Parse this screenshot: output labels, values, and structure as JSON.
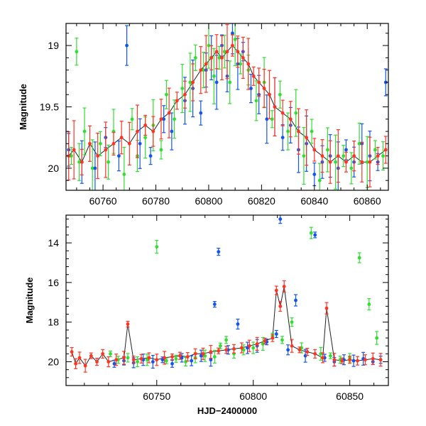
{
  "chart_data": [
    {
      "type": "scatter",
      "panel": "top",
      "xlabel": "",
      "ylabel": "Magnitude",
      "xlim": [
        60746,
        60868
      ],
      "ylim": [
        20.18,
        18.82
      ],
      "y_inverted": true,
      "xticks": [
        60760,
        60780,
        60800,
        60820,
        60840,
        60860
      ],
      "xtick_labels": [
        "60760",
        "60780",
        "60800",
        "60820",
        "60840",
        "60860"
      ],
      "yticks": [
        19,
        19.5,
        20
      ],
      "ytick_labels": [
        "19",
        "19.5",
        "20"
      ],
      "grid": false,
      "errorbars": true,
      "series": [
        {
          "color": "#33dd33",
          "x": [
            60748,
            60750,
            60751,
            60753,
            60756,
            60759,
            60762,
            60764,
            60768,
            60771,
            60773,
            60776,
            60779,
            60782,
            60784,
            60787,
            60790,
            60793,
            60795,
            60798,
            60800,
            60802,
            60804,
            60806,
            60808,
            60810,
            60812,
            60815,
            60818,
            60821,
            60824,
            60827,
            60830,
            60833,
            60836,
            60839,
            60842,
            60845,
            60848,
            60851,
            60854,
            60857,
            60860,
            60863,
            60866
          ],
          "y": [
            19.9,
            19.05,
            19.95,
            19.7,
            20.0,
            19.8,
            19.95,
            19.7,
            20.05,
            19.6,
            19.9,
            19.75,
            19.65,
            19.85,
            19.4,
            19.6,
            19.35,
            19.3,
            19.1,
            19.2,
            19.0,
            19.25,
            19.1,
            19.05,
            19.3,
            18.95,
            19.15,
            19.2,
            19.45,
            19.3,
            19.6,
            19.4,
            19.7,
            19.55,
            19.9,
            19.7,
            20.1,
            19.85,
            19.95,
            19.9,
            20.0,
            19.8,
            19.95,
            19.85,
            19.9
          ]
        },
        {
          "color": "#1155ee",
          "x": [
            60747,
            60752,
            60757,
            60761,
            60766,
            60769,
            60774,
            60778,
            60783,
            60786,
            60791,
            60794,
            60797,
            60799,
            60801,
            60803,
            60805,
            60807,
            60809,
            60811,
            60813,
            60816,
            60819,
            60822,
            60825,
            60828,
            60831,
            60834,
            60837,
            60840,
            60843,
            60846,
            60849,
            60852,
            60855,
            60858,
            60861,
            60864,
            60867
          ],
          "y": [
            19.85,
            19.95,
            20.0,
            19.75,
            19.9,
            19.0,
            19.8,
            19.9,
            19.6,
            19.7,
            19.45,
            19.35,
            19.55,
            19.2,
            19.1,
            19.3,
            19.0,
            19.25,
            18.9,
            19.15,
            19.05,
            19.35,
            19.4,
            19.6,
            19.5,
            19.75,
            19.65,
            19.85,
            19.8,
            20.05,
            19.95,
            19.9,
            20.0,
            19.85,
            19.95,
            19.8,
            19.9,
            19.95,
            19.3
          ]
        },
        {
          "color": "#ff3322",
          "x": [
            60747,
            60749,
            60752,
            60755,
            60758,
            60761,
            60764,
            60767,
            60770,
            60773,
            60776,
            60779,
            60782,
            60785,
            60788,
            60791,
            60794,
            60797,
            60799,
            60801,
            60803,
            60805,
            60807,
            60809,
            60811,
            60813,
            60815,
            60817,
            60819,
            60821,
            60823,
            60825,
            60828,
            60831,
            60834,
            60837,
            60840,
            60843,
            60846,
            60849,
            60852,
            60855,
            60858,
            60861,
            60864,
            60867
          ],
          "y": [
            19.9,
            19.85,
            19.95,
            19.8,
            19.9,
            19.85,
            19.8,
            19.75,
            19.8,
            19.7,
            19.65,
            19.7,
            19.6,
            19.55,
            19.45,
            19.4,
            19.3,
            19.2,
            19.15,
            19.1,
            19.05,
            19.1,
            19.05,
            19.0,
            19.05,
            19.1,
            19.15,
            19.25,
            19.3,
            19.35,
            19.4,
            19.5,
            19.55,
            19.6,
            19.7,
            19.75,
            19.85,
            19.9,
            19.95,
            19.9,
            19.95,
            19.9,
            19.95,
            19.95,
            19.9,
            19.85
          ]
        }
      ]
    },
    {
      "type": "scatter",
      "panel": "bottom",
      "xlabel": "HJD−2400000",
      "ylabel": "Magnitude",
      "xlim": [
        60703,
        60870
      ],
      "ylim": [
        21.2,
        12.6
      ],
      "y_inverted": true,
      "xticks": [
        60750,
        60800,
        60850
      ],
      "xtick_labels": [
        "60750",
        "60800",
        "60850"
      ],
      "yticks": [
        14,
        16,
        18,
        20
      ],
      "ytick_labels": [
        "14",
        "16",
        "18",
        "20"
      ],
      "grid": false,
      "errorbars": true,
      "series": [
        {
          "color": "#33dd33",
          "x": [
            60726,
            60730,
            60735,
            60740,
            60745,
            60750,
            60755,
            60760,
            60765,
            60770,
            60775,
            60780,
            60783,
            60786,
            60790,
            60795,
            60800,
            60805,
            60810,
            60815,
            60820,
            60825,
            60830,
            60835,
            60840,
            60845,
            60850,
            60855,
            60860,
            60864
          ],
          "y": [
            19.6,
            19.9,
            19.8,
            20.0,
            19.9,
            14.2,
            19.95,
            19.85,
            20.0,
            19.8,
            19.7,
            19.75,
            19.2,
            18.9,
            19.6,
            19.4,
            19.3,
            19.1,
            18.7,
            18.9,
            18.0,
            19.3,
            13.5,
            19.6,
            19.7,
            19.9,
            19.8,
            14.75,
            17.1,
            18.8
          ]
        },
        {
          "color": "#1155ee",
          "x": [
            60728,
            60733,
            60738,
            60743,
            60748,
            60753,
            60758,
            60763,
            60768,
            60773,
            60778,
            60780,
            60782,
            60787,
            60792,
            60797,
            60802,
            60807,
            60812,
            60814,
            60818,
            60822,
            60827,
            60832,
            60837,
            60842,
            60847,
            60852,
            60857,
            60862,
            60866
          ],
          "y": [
            20.1,
            19.95,
            20.05,
            19.9,
            20.0,
            19.9,
            20.1,
            19.8,
            19.95,
            19.7,
            19.9,
            17.1,
            14.45,
            19.4,
            18.1,
            19.3,
            19.2,
            19.0,
            18.6,
            12.8,
            19.4,
            16.9,
            19.7,
            13.6,
            19.8,
            20.0,
            19.9,
            19.95,
            19.85,
            20.0,
            19.9
          ]
        },
        {
          "color": "#ff3322",
          "x": [
            60706,
            60708,
            60710,
            60713,
            60716,
            60719,
            60722,
            60725,
            60729,
            60733,
            60735,
            60738,
            60742,
            60746,
            60750,
            60754,
            60758,
            60762,
            60766,
            60770,
            60774,
            60778,
            60782,
            60786,
            60790,
            60794,
            60798,
            60802,
            60806,
            60810,
            60812,
            60814,
            60816,
            60820,
            60824,
            60828,
            60832,
            60836,
            60838,
            60842,
            60846,
            60850,
            60854,
            60858,
            60862,
            60866
          ],
          "y": [
            19.5,
            20.1,
            19.8,
            20.2,
            19.7,
            20.0,
            19.6,
            20.0,
            19.9,
            19.8,
            18.1,
            19.9,
            19.85,
            19.8,
            19.9,
            19.8,
            19.75,
            19.7,
            19.75,
            19.6,
            19.6,
            19.5,
            19.45,
            19.4,
            19.35,
            19.3,
            19.2,
            19.1,
            18.95,
            18.8,
            16.4,
            17.2,
            16.2,
            19.2,
            19.4,
            19.5,
            19.6,
            19.8,
            17.3,
            19.9,
            19.95,
            19.9,
            19.95,
            19.9,
            19.85,
            19.9
          ]
        }
      ]
    }
  ]
}
